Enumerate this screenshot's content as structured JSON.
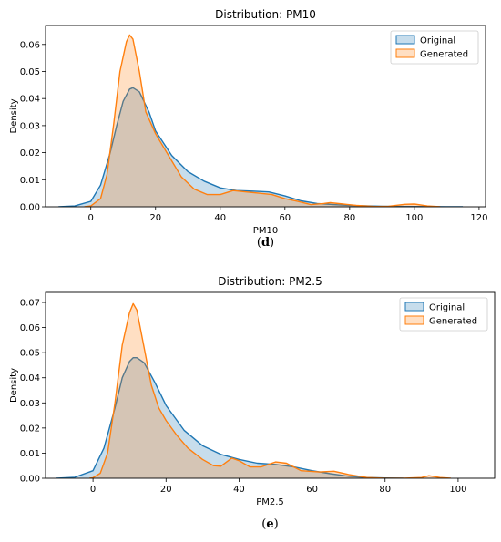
{
  "chart_data": [
    {
      "type": "area",
      "panel_label": "d",
      "title": "Distribution: PM10",
      "xlabel": "PM10",
      "ylabel": "Density",
      "xlim": [
        -14,
        122
      ],
      "ylim": [
        0,
        0.067
      ],
      "xticks": [
        0,
        20,
        40,
        60,
        80,
        100,
        120
      ],
      "yticks": [
        0.0,
        0.01,
        0.02,
        0.03,
        0.04,
        0.05,
        0.06
      ],
      "legend_position": "top-right",
      "grid": false,
      "series": [
        {
          "name": "Original",
          "color": "#1f77b4",
          "x": [
            -10,
            -5,
            0,
            3,
            6,
            8,
            10,
            12,
            13,
            15,
            18,
            20,
            25,
            30,
            35,
            40,
            45,
            50,
            55,
            60,
            65,
            70,
            75,
            80,
            90,
            100,
            110,
            115
          ],
          "y": [
            0,
            0.0003,
            0.002,
            0.008,
            0.02,
            0.03,
            0.039,
            0.0435,
            0.044,
            0.0425,
            0.035,
            0.028,
            0.019,
            0.013,
            0.0095,
            0.007,
            0.006,
            0.0058,
            0.0055,
            0.004,
            0.0022,
            0.0012,
            0.0008,
            0.0005,
            0.0002,
            0.0001,
            0,
            0
          ]
        },
        {
          "name": "Generated",
          "color": "#ff7f0e",
          "x": [
            -2,
            0,
            3,
            5,
            7,
            9,
            11,
            12,
            13,
            15,
            17,
            20,
            23,
            25,
            28,
            32,
            36,
            40,
            44,
            48,
            52,
            56,
            60,
            64,
            68,
            72,
            74,
            78,
            82,
            88,
            92,
            97,
            100,
            104,
            108
          ],
          "y": [
            0,
            0.0003,
            0.003,
            0.012,
            0.03,
            0.05,
            0.061,
            0.0635,
            0.062,
            0.05,
            0.035,
            0.027,
            0.021,
            0.017,
            0.011,
            0.0065,
            0.0045,
            0.0045,
            0.006,
            0.0055,
            0.005,
            0.0045,
            0.003,
            0.002,
            0.0008,
            0.0012,
            0.0015,
            0.001,
            0.0005,
            0.0001,
            0.0002,
            0.0009,
            0.001,
            0.0003,
            0
          ]
        }
      ]
    },
    {
      "type": "area",
      "panel_label": "e",
      "title": "Distribution: PM2.5",
      "xlabel": "PM2.5",
      "ylabel": "Density",
      "xlim": [
        -13,
        110
      ],
      "ylim": [
        0,
        0.074
      ],
      "xticks": [
        0,
        20,
        40,
        60,
        80,
        100
      ],
      "yticks": [
        0.0,
        0.01,
        0.02,
        0.03,
        0.04,
        0.05,
        0.06,
        0.07
      ],
      "legend_position": "top-right",
      "grid": false,
      "series": [
        {
          "name": "Original",
          "color": "#1f77b4",
          "x": [
            -10,
            -5,
            0,
            3,
            6,
            8,
            10,
            11,
            12,
            14,
            17,
            20,
            25,
            30,
            35,
            40,
            45,
            50,
            55,
            60,
            65,
            70,
            75,
            80,
            85
          ],
          "y": [
            0,
            0.0004,
            0.003,
            0.012,
            0.028,
            0.04,
            0.0465,
            0.048,
            0.048,
            0.046,
            0.038,
            0.029,
            0.019,
            0.013,
            0.0095,
            0.0075,
            0.006,
            0.0055,
            0.0045,
            0.003,
            0.0018,
            0.0008,
            0.0003,
            0.0001,
            0
          ]
        },
        {
          "name": "Generated",
          "color": "#ff7f0e",
          "x": [
            -1,
            0,
            2,
            4,
            6,
            8,
            10,
            11,
            12,
            14,
            16,
            18,
            20,
            23,
            26,
            30,
            33,
            35,
            38,
            40,
            43,
            46,
            50,
            53,
            57,
            62,
            66,
            70,
            75,
            80,
            85,
            90,
            92,
            95,
            98
          ],
          "y": [
            0,
            0.0002,
            0.002,
            0.01,
            0.03,
            0.053,
            0.066,
            0.0695,
            0.067,
            0.052,
            0.037,
            0.028,
            0.023,
            0.017,
            0.012,
            0.0075,
            0.005,
            0.0048,
            0.008,
            0.007,
            0.0045,
            0.0045,
            0.0065,
            0.006,
            0.003,
            0.0025,
            0.0028,
            0.0015,
            0.0003,
            0,
            0,
            0.0003,
            0.001,
            0.0003,
            0
          ]
        }
      ]
    }
  ]
}
